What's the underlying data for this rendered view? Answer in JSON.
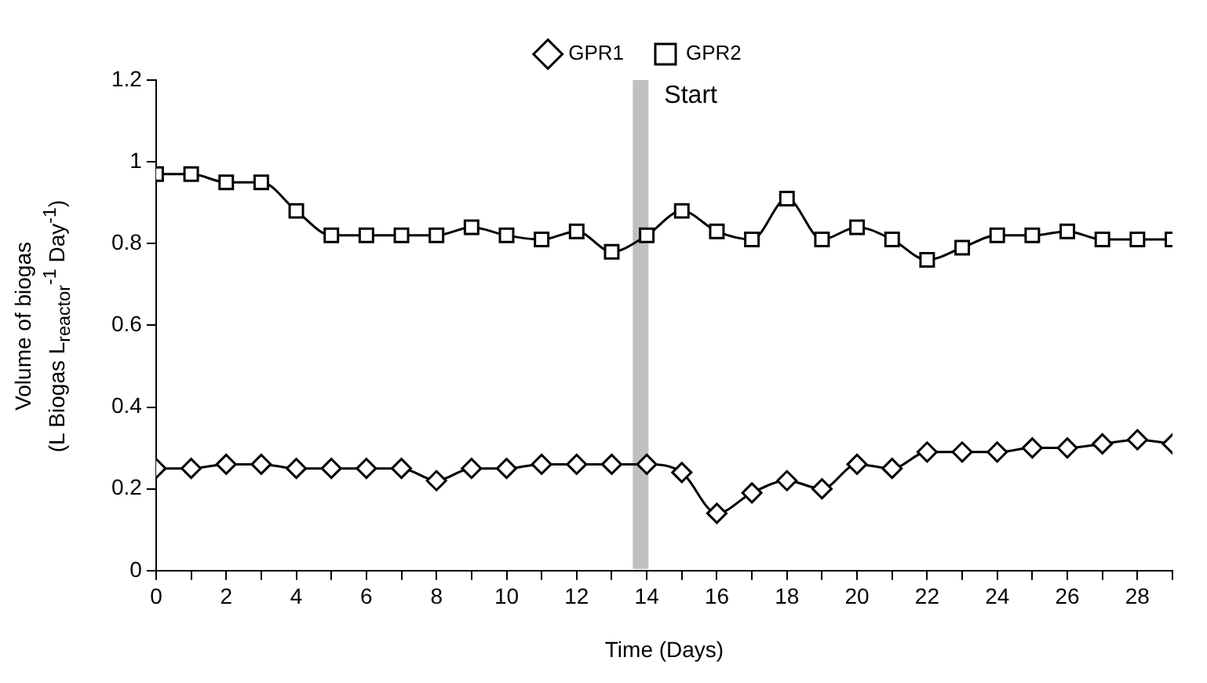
{
  "chart_data": {
    "type": "line",
    "xlabel": "Time (Days)",
    "ylabel": "Volume of biogas\n(L Biogas L$_{reactor}$$^{-1}$ Day$^{-1}$)",
    "x": [
      0,
      1,
      2,
      3,
      4,
      5,
      6,
      7,
      8,
      9,
      10,
      11,
      12,
      13,
      14,
      15,
      16,
      17,
      18,
      19,
      20,
      21,
      22,
      23,
      24,
      25,
      26,
      27,
      28,
      29
    ],
    "series": [
      {
        "name": "GPR1",
        "color": "#000000",
        "marker": "diamond",
        "values": [
          0.25,
          0.25,
          0.26,
          0.26,
          0.25,
          0.25,
          0.25,
          0.25,
          0.22,
          0.25,
          0.25,
          0.26,
          0.26,
          0.26,
          0.26,
          0.24,
          0.14,
          0.19,
          0.22,
          0.2,
          0.26,
          0.25,
          0.29,
          0.29,
          0.29,
          0.3,
          0.3,
          0.31,
          0.32,
          0.31
        ]
      },
      {
        "name": "GPR2",
        "color": "#000000",
        "marker": "square",
        "values": [
          0.97,
          0.97,
          0.95,
          0.95,
          0.88,
          0.82,
          0.82,
          0.82,
          0.82,
          0.84,
          0.82,
          0.81,
          0.83,
          0.78,
          0.82,
          0.88,
          0.83,
          0.81,
          0.91,
          0.81,
          0.84,
          0.81,
          0.76,
          0.79,
          0.82,
          0.82,
          0.83,
          0.81,
          0.81,
          0.81
        ]
      }
    ],
    "xlim": [
      0,
      29
    ],
    "xticks": [
      0,
      {
        "value": 1,
        "label": null
      },
      2,
      {
        "value": 3,
        "label": null
      },
      4,
      {
        "value": 5,
        "label": null
      },
      6,
      {
        "value": 7,
        "label": null
      },
      8,
      {
        "value": 9,
        "label": null
      },
      10,
      {
        "value": 11,
        "label": null
      },
      12,
      {
        "value": 13,
        "label": null
      },
      14,
      {
        "value": 15,
        "label": null
      },
      16,
      {
        "value": 17,
        "label": null
      },
      18,
      {
        "value": 19,
        "label": null
      },
      20,
      {
        "value": 21,
        "label": null
      },
      22,
      {
        "value": 23,
        "label": null
      },
      24,
      {
        "value": 25,
        "label": null
      },
      26,
      {
        "value": 27,
        "label": null
      },
      28,
      {
        "value": 29,
        "label": null
      }
    ],
    "ylim": [
      0,
      1.2
    ],
    "yticks": [
      0,
      0.2,
      0.4,
      0.6,
      0.8,
      1,
      1.2
    ],
    "bands": [
      {
        "axis": "x",
        "from": 13.6,
        "to": 14.05,
        "label": "Start",
        "color": "#c0c0c0"
      }
    ],
    "legend": "top",
    "grid": false
  }
}
